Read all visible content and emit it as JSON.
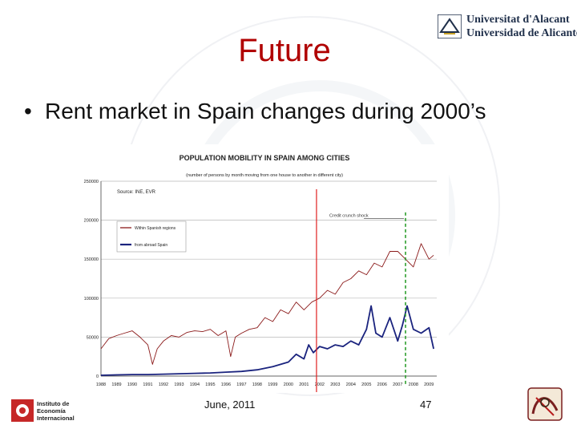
{
  "slide": {
    "title": "Future",
    "bullet": "Rent market in Spain changes during 2000’s",
    "footer_date": "June, 2011",
    "page_number": "47"
  },
  "logos": {
    "university_line1": "Universitat d'Alacant",
    "university_line2": "Universidad de Alicante",
    "institute_line1": "Instituto de",
    "institute_line2": "Economía",
    "institute_line3": "Internacional"
  },
  "colors": {
    "title": "#b00000",
    "within_series": "#8b1a1a",
    "abroad_series": "#1a237e",
    "shock_line": "#2e9e2e",
    "red_marker": "#e02020"
  },
  "chart_data": {
    "type": "line",
    "title": "POPULATION MOBILITY IN SPAIN AMONG CITIES",
    "subtitle": "(number of persons by month moving from one house to another in different city)",
    "source": "Source: INE, EVR",
    "annotation": "Credit crunch shock",
    "xlabel": "",
    "ylabel": "",
    "ylim": [
      0,
      250000
    ],
    "yticks": [
      "0",
      "50000",
      "100000",
      "150000",
      "200000",
      "250000"
    ],
    "xticks": [
      "1988",
      "1989",
      "1990",
      "1991",
      "1992",
      "1993",
      "1994",
      "1995",
      "1996",
      "1997",
      "1998",
      "1999",
      "2000",
      "2001",
      "2002",
      "2003",
      "2004",
      "2005",
      "2006",
      "2007",
      "2008",
      "2009"
    ],
    "xlim": [
      1988,
      2009.5
    ],
    "legend": "top-left",
    "shock_x": 2007.5,
    "red_marker_x": 2001.8,
    "series": [
      {
        "name": "Within Spanish regions",
        "x": [
          1988,
          1988.5,
          1989,
          1989.5,
          1990,
          1990.5,
          1991,
          1991.3,
          1991.6,
          1992,
          1992.5,
          1993,
          1993.5,
          1994,
          1994.5,
          1995,
          1995.5,
          1996,
          1996.3,
          1996.6,
          1997,
          1997.5,
          1998,
          1998.5,
          1999,
          1999.5,
          2000,
          2000.5,
          2001,
          2001.5,
          2002,
          2002.5,
          2003,
          2003.5,
          2004,
          2004.5,
          2005,
          2005.5,
          2006,
          2006.5,
          2007,
          2007.5,
          2008,
          2008.5,
          2009,
          2009.3
        ],
        "values": [
          35000,
          48000,
          52000,
          55000,
          58000,
          50000,
          40000,
          15000,
          35000,
          45000,
          52000,
          50000,
          56000,
          58000,
          57000,
          60000,
          52000,
          58000,
          25000,
          50000,
          55000,
          60000,
          62000,
          75000,
          70000,
          85000,
          80000,
          95000,
          85000,
          95000,
          100000,
          110000,
          105000,
          120000,
          125000,
          135000,
          130000,
          145000,
          140000,
          160000,
          160000,
          150000,
          140000,
          170000,
          150000,
          155000
        ]
      },
      {
        "name": "from abroad Spain",
        "x": [
          1988,
          1989,
          1990,
          1991,
          1992,
          1993,
          1994,
          1995,
          1996,
          1997,
          1998,
          1999,
          2000,
          2000.5,
          2001,
          2001.3,
          2001.6,
          2002,
          2002.5,
          2003,
          2003.5,
          2004,
          2004.5,
          2005,
          2005.3,
          2005.6,
          2006,
          2006.5,
          2007,
          2007.3,
          2007.6,
          2008,
          2008.5,
          2009,
          2009.3
        ],
        "values": [
          1000,
          1500,
          2000,
          2000,
          2500,
          3000,
          3500,
          4000,
          5000,
          6000,
          8000,
          12000,
          18000,
          28000,
          22000,
          40000,
          30000,
          38000,
          35000,
          40000,
          38000,
          45000,
          40000,
          60000,
          90000,
          55000,
          50000,
          75000,
          45000,
          65000,
          90000,
          60000,
          55000,
          62000,
          35000
        ]
      }
    ]
  }
}
